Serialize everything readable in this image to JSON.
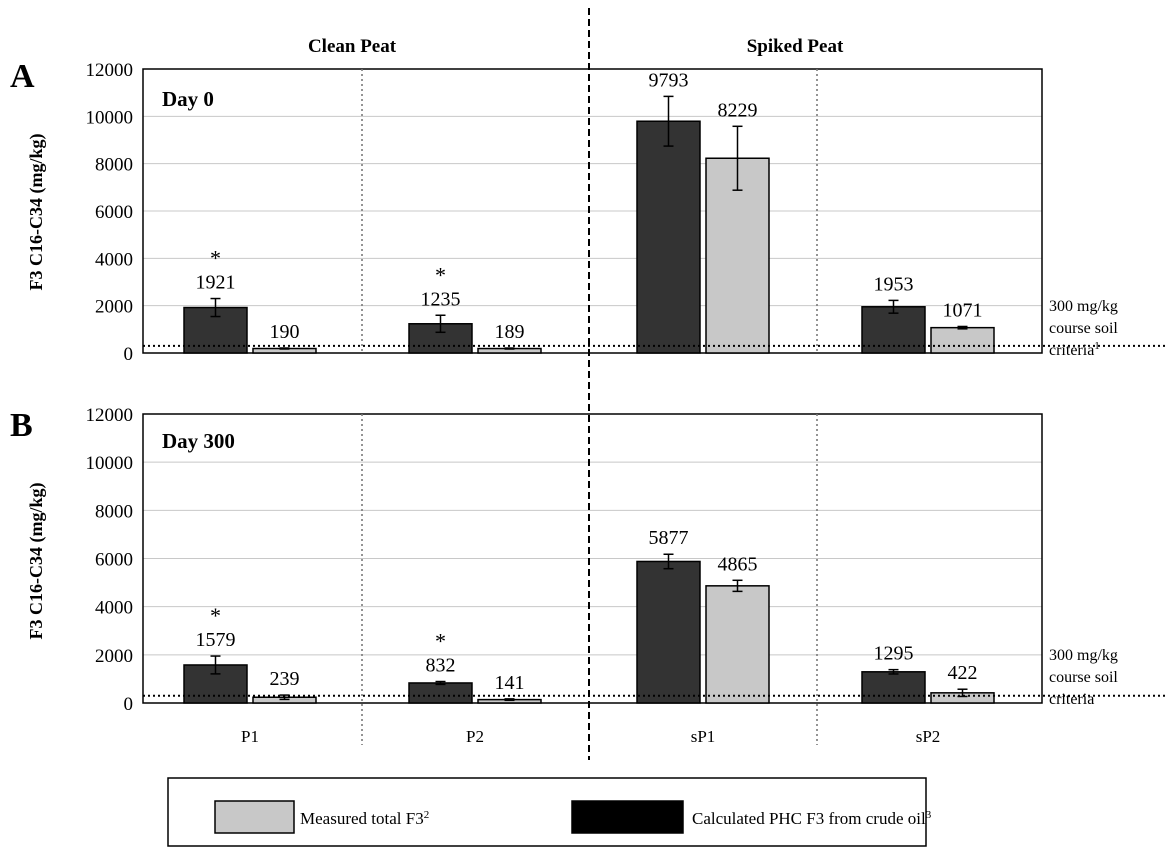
{
  "figure": {
    "group_labels": [
      "Clean Peat",
      "Spiked Peat"
    ],
    "ylabel": "F3 C16-C34 (mg/kg)",
    "criteria_label_a": [
      "300 mg/kg",
      "course soil",
      "criteria"
    ],
    "criteria_sup_a": "1",
    "criteria_label_b": [
      "300 mg/kg",
      "course soil",
      "criteria"
    ],
    "legend": {
      "measured": "Measured total F3",
      "measured_sup": "2",
      "calculated": "Calculated PHC F3 from crude oil",
      "calculated_sup": "3"
    },
    "colors": {
      "calculated": "#333333",
      "measured": "#c8c8c8"
    }
  },
  "chart_data": [
    {
      "type": "bar",
      "panel": "A",
      "title": "Day 0",
      "categories": [
        "P1",
        "P2",
        "sP1",
        "sP2"
      ],
      "ylim": [
        0,
        12000
      ],
      "yticks": [
        0,
        2000,
        4000,
        6000,
        8000,
        10000,
        12000
      ],
      "criteria": 300,
      "series": [
        {
          "name": "Calculated PHC F3 from crude oil",
          "values": [
            1921,
            1235,
            9793,
            1953
          ],
          "errors": [
            380,
            360,
            1050,
            270
          ],
          "labels": [
            "1921",
            "1235",
            "9793",
            "1953"
          ],
          "asterisk": [
            true,
            true,
            false,
            false
          ]
        },
        {
          "name": "Measured total F3",
          "values": [
            190,
            189,
            8229,
            1071
          ],
          "errors": [
            20,
            20,
            1350,
            50
          ],
          "labels": [
            "190",
            "189",
            "8229",
            "1071"
          ],
          "asterisk": [
            false,
            false,
            false,
            false
          ]
        }
      ]
    },
    {
      "type": "bar",
      "panel": "B",
      "title": "Day 300",
      "categories": [
        "P1",
        "P2",
        "sP1",
        "sP2"
      ],
      "ylim": [
        0,
        12000
      ],
      "yticks": [
        0,
        2000,
        4000,
        6000,
        8000,
        10000,
        12000
      ],
      "criteria": 300,
      "series": [
        {
          "name": "Calculated PHC F3 from crude oil",
          "values": [
            1579,
            832,
            5877,
            1295
          ],
          "errors": [
            370,
            60,
            300,
            90
          ],
          "labels": [
            "1579",
            "832",
            "5877",
            "1295"
          ],
          "asterisk": [
            true,
            true,
            false,
            false
          ]
        },
        {
          "name": "Measured total F3",
          "values": [
            239,
            141,
            4865,
            422
          ],
          "errors": [
            90,
            30,
            230,
            150
          ],
          "labels": [
            "239",
            "141",
            "4865",
            "422"
          ],
          "asterisk": [
            false,
            false,
            false,
            false
          ]
        }
      ]
    }
  ]
}
